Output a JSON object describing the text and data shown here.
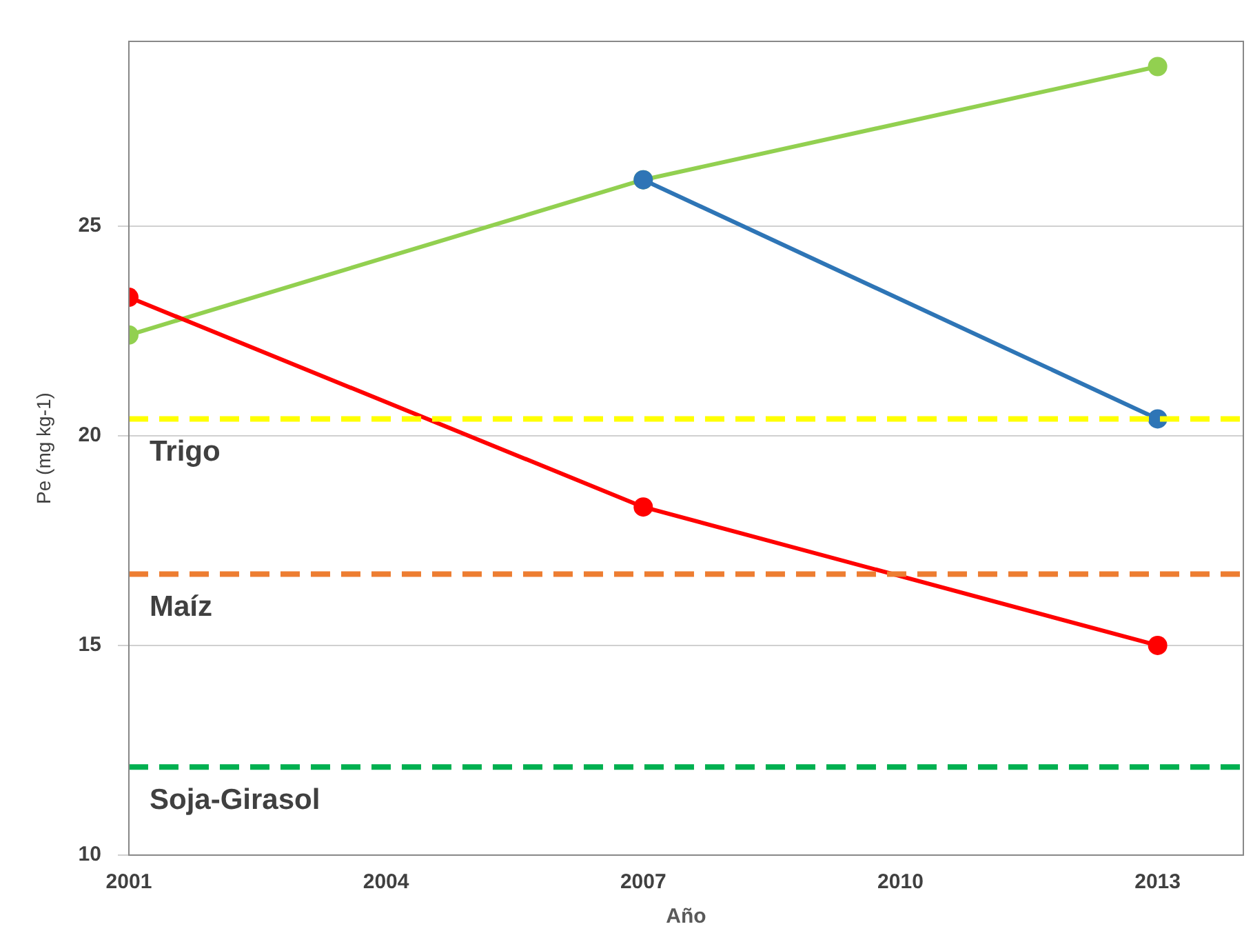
{
  "chart_data": {
    "type": "line",
    "xlabel": "Año",
    "ylabel": "Pe (mg kg-1)",
    "xlim": [
      2001,
      2014
    ],
    "xticks": [
      2001,
      2004,
      2007,
      2010,
      2013
    ],
    "ylim": [
      10,
      29.4
    ],
    "yticks": [
      10,
      15,
      20,
      25
    ],
    "grid": "y",
    "legend": false,
    "marker": "circle",
    "line_style": "solid",
    "series": [
      {
        "color": "#92d050",
        "x": [
          2001,
          2007,
          2013
        ],
        "values": [
          22.4,
          26.1,
          28.8
        ]
      },
      {
        "color": "#2e75b6",
        "x": [
          2007,
          2013
        ],
        "values": [
          26.1,
          20.4
        ]
      },
      {
        "color": "#ff0000",
        "x": [
          2001,
          2007,
          2013
        ],
        "values": [
          23.3,
          18.3,
          15.0
        ]
      }
    ],
    "ref_lines": [
      {
        "axis": "y",
        "value": 20.4,
        "label": "Trigo",
        "color": "#ffff00",
        "line_style": "dashed"
      },
      {
        "axis": "y",
        "value": 16.7,
        "label": "Maíz",
        "color": "#ed7d31",
        "line_style": "dashed"
      },
      {
        "axis": "y",
        "value": 12.1,
        "label": "Soja-Girasol",
        "color": "#00b050",
        "line_style": "dashed"
      }
    ]
  }
}
